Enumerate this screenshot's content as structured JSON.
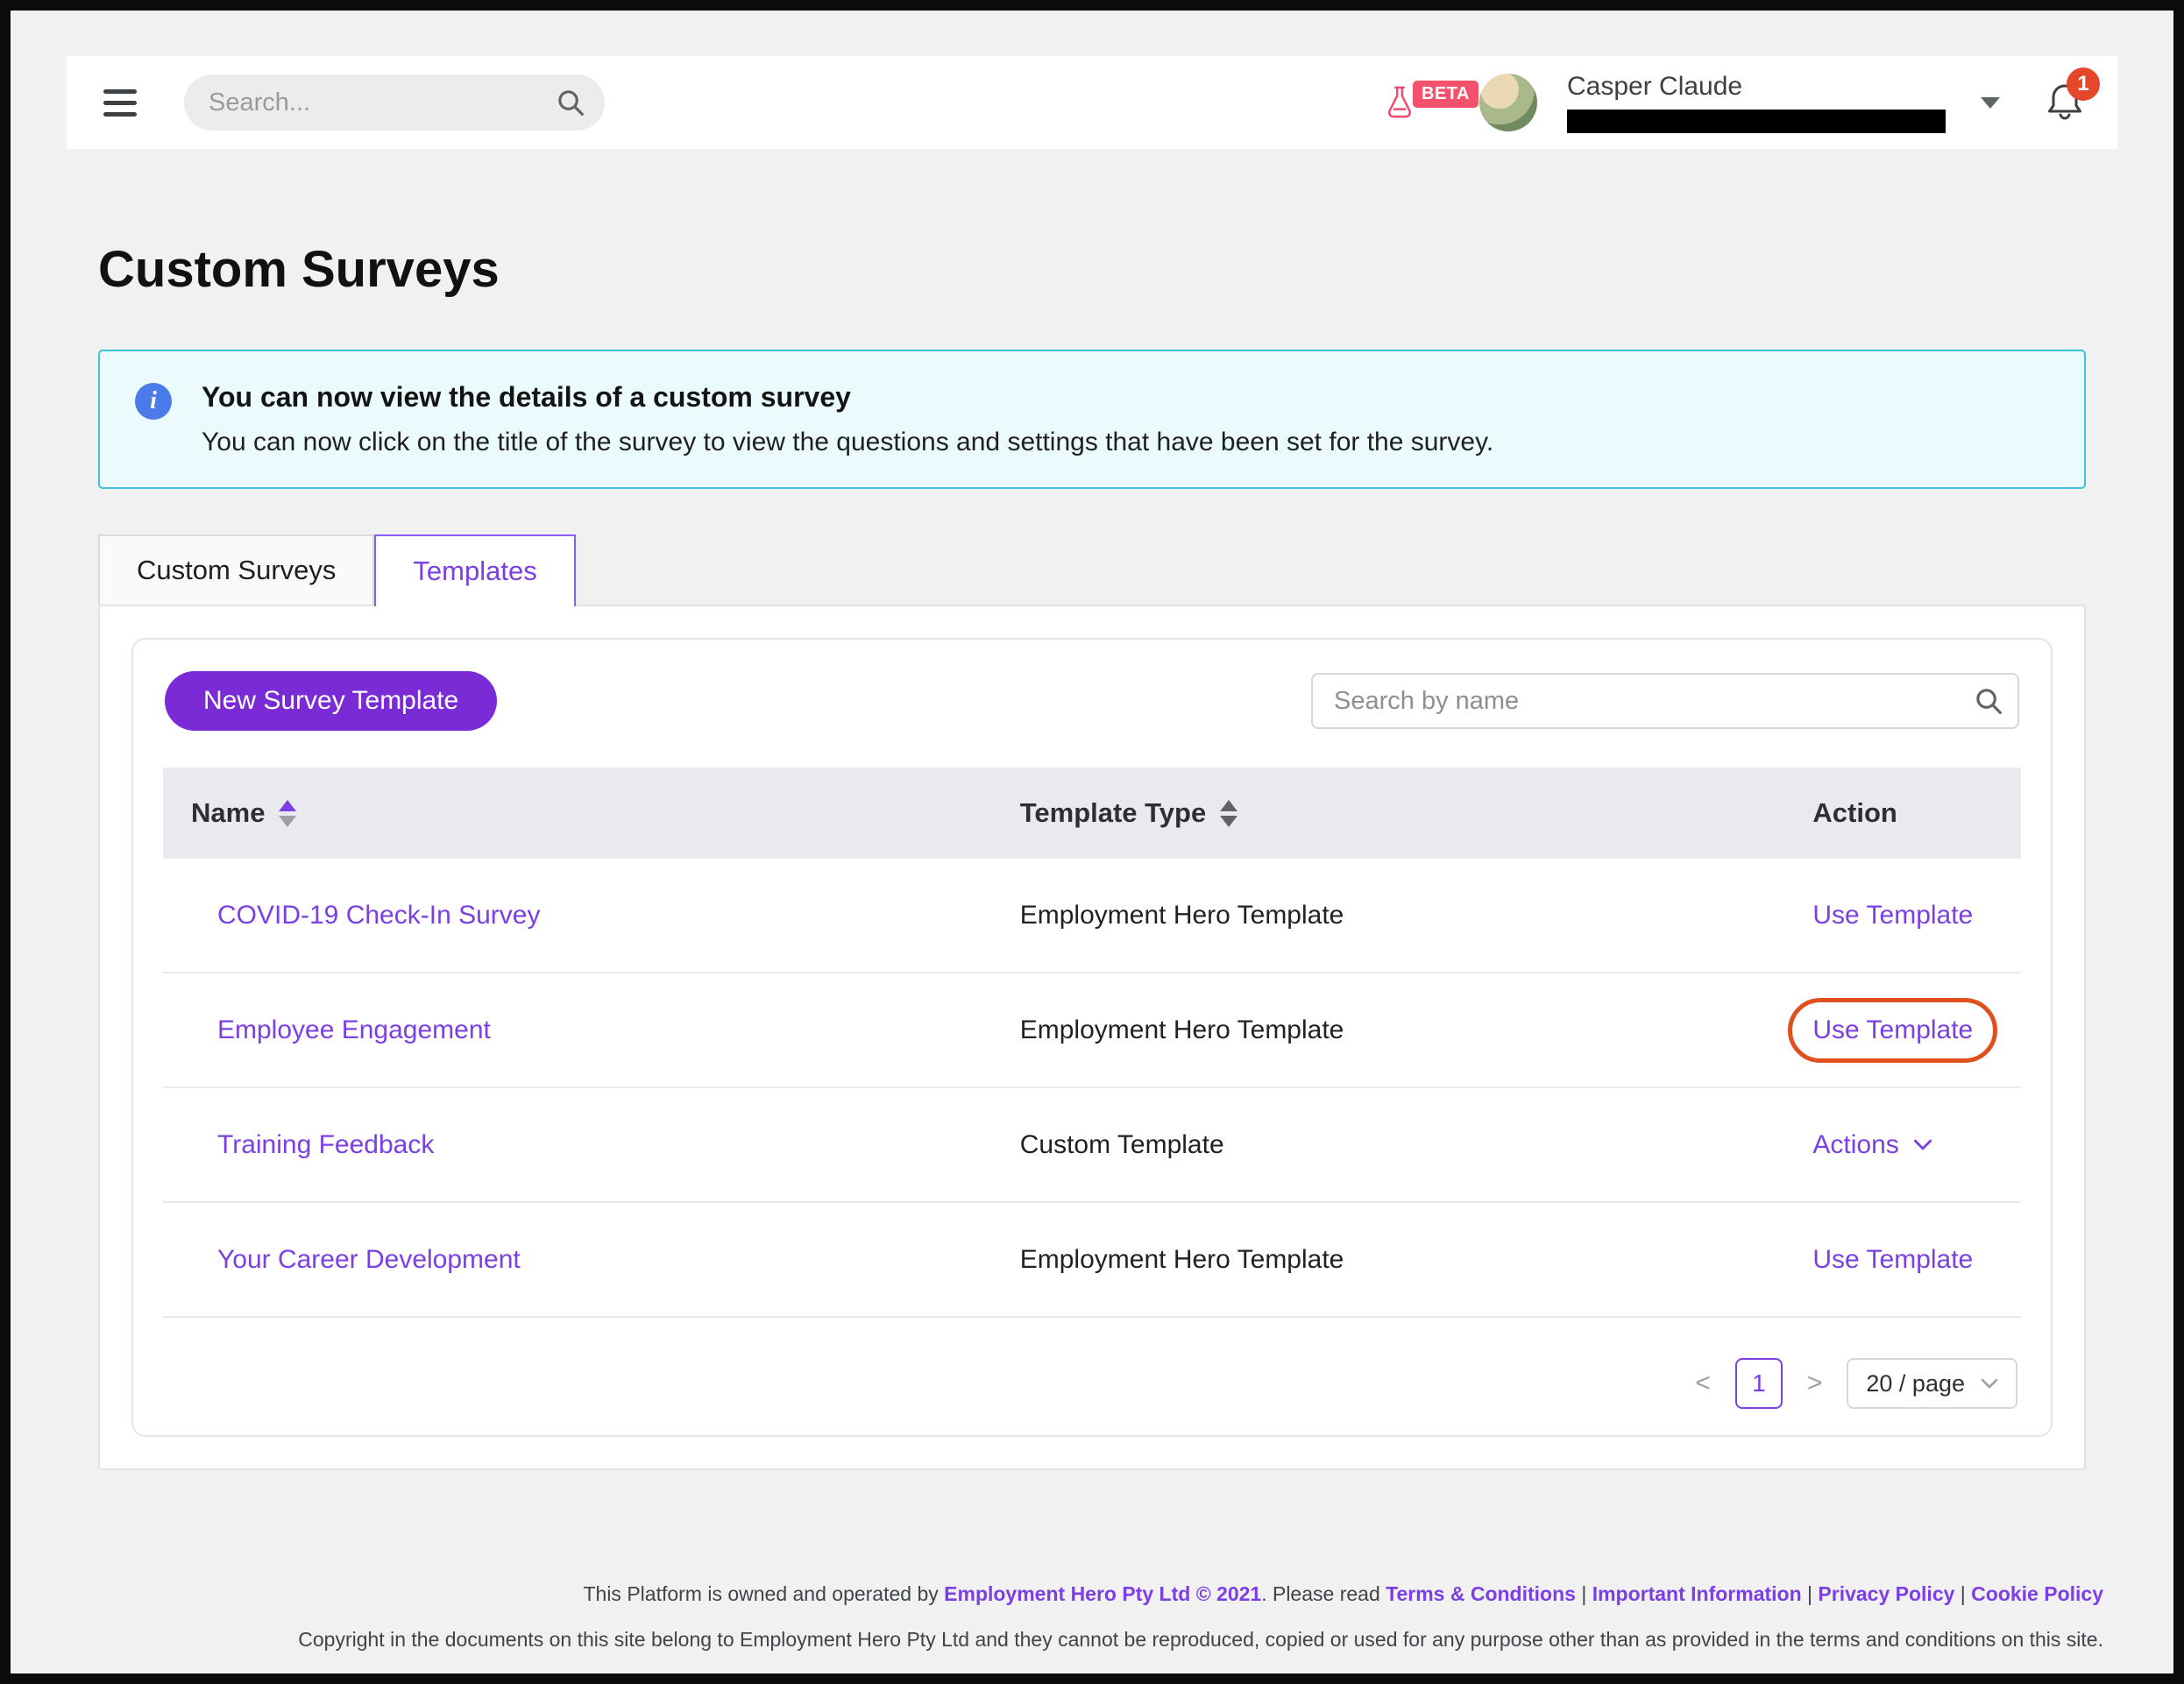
{
  "header": {
    "search_placeholder": "Search...",
    "beta_label": "BETA",
    "user_name": "Casper Claude",
    "notification_count": "1"
  },
  "icons": {
    "info_glyph": "i"
  },
  "page": {
    "title": "Custom Surveys"
  },
  "banner": {
    "title": "You can now view the details of a custom survey",
    "body": "You can now click on the title of the survey to view the questions and settings that have been set for the survey."
  },
  "tabs": [
    {
      "label": "Custom Surveys",
      "active": false
    },
    {
      "label": "Templates",
      "active": true
    }
  ],
  "panel": {
    "new_template_button": "New Survey Template",
    "search_placeholder": "Search by name",
    "table": {
      "columns": [
        "Name",
        "Template Type",
        "Action"
      ],
      "rows": [
        {
          "name": "COVID-19 Check-In Survey",
          "type": "Employment Hero Template",
          "action": "Use Template",
          "action_kind": "link",
          "annotated": false
        },
        {
          "name": "Employee Engagement",
          "type": "Employment Hero Template",
          "action": "Use Template",
          "action_kind": "link",
          "annotated": true
        },
        {
          "name": "Training Feedback",
          "type": "Custom Template",
          "action": "Actions",
          "action_kind": "menu",
          "annotated": false
        },
        {
          "name": "Your Career Development",
          "type": "Employment Hero Template",
          "action": "Use Template",
          "action_kind": "link",
          "annotated": false
        }
      ]
    },
    "pagination": {
      "prev": "<",
      "page": "1",
      "next": ">",
      "page_size": "20 / page"
    }
  },
  "footer": {
    "line1": [
      {
        "text": "This Platform is owned and operated by ",
        "link": false
      },
      {
        "text": "Employment Hero Pty Ltd © 2021",
        "link": true
      },
      {
        "text": ". Please read ",
        "link": false
      },
      {
        "text": "Terms & Conditions",
        "link": true
      },
      {
        "text": " | ",
        "link": false
      },
      {
        "text": "Important Information",
        "link": true
      },
      {
        "text": " | ",
        "link": false
      },
      {
        "text": "Privacy Policy",
        "link": true
      },
      {
        "text": " | ",
        "link": false
      },
      {
        "text": "Cookie Policy",
        "link": true
      }
    ],
    "line2": "Copyright in the documents on this site belong to Employment Hero Pty Ltd and they cannot be reproduced, copied or used for any purpose other than as provided in the terms and conditions on this site."
  },
  "colors": {
    "accent_purple": "#7b3fe4",
    "button_purple": "#7a2bd6",
    "banner_border": "#3fc3da",
    "banner_bg": "#eafafd",
    "notification_red": "#e5472b",
    "beta_pink": "#f4516c",
    "annotation_orange": "#e0501e",
    "table_header_bg": "#e9e9ef"
  }
}
